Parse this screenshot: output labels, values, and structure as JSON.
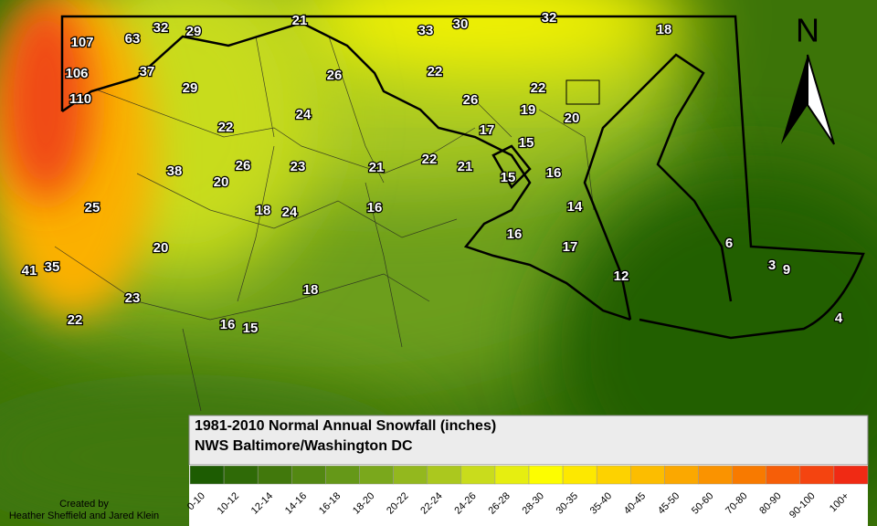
{
  "title": "1981-2010 Normal Annual Snowfall (inches)",
  "subtitle": "NWS Baltimore/Washington DC",
  "north_label": "N",
  "credit": [
    "Created by",
    "Heather Sheffield and Jared Klein"
  ],
  "legend": [
    {
      "label": "0-10",
      "color": "#1d5c02"
    },
    {
      "label": "10-12",
      "color": "#2f6a07"
    },
    {
      "label": "12-14",
      "color": "#41780c"
    },
    {
      "label": "14-16",
      "color": "#538812"
    },
    {
      "label": "16-18",
      "color": "#659818"
    },
    {
      "label": "18-20",
      "color": "#7aa81c"
    },
    {
      "label": "20-22",
      "color": "#93b81e"
    },
    {
      "label": "22-24",
      "color": "#abc81e"
    },
    {
      "label": "24-26",
      "color": "#c9dc1c"
    },
    {
      "label": "26-28",
      "color": "#e6ee10"
    },
    {
      "label": "28-30",
      "color": "#fdfd00"
    },
    {
      "label": "30-35",
      "color": "#fde800"
    },
    {
      "label": "35-40",
      "color": "#fdd200"
    },
    {
      "label": "40-45",
      "color": "#fcbd00"
    },
    {
      "label": "45-50",
      "color": "#fba800"
    },
    {
      "label": "50-60",
      "color": "#fa9300"
    },
    {
      "label": "70-80",
      "color": "#f87a00"
    },
    {
      "label": "80-90",
      "color": "#f65e08"
    },
    {
      "label": "90-100",
      "color": "#f44410"
    },
    {
      "label": "100+",
      "color": "#f02a14"
    }
  ],
  "stations": [
    107,
    63,
    32,
    29,
    21,
    33,
    30,
    32,
    18,
    106,
    37,
    26,
    22,
    110,
    29,
    26,
    22,
    19,
    20,
    24,
    22,
    17,
    15,
    38,
    26,
    20,
    23,
    21,
    22,
    21,
    15,
    16,
    25,
    18,
    24,
    16,
    14,
    20,
    16,
    17,
    6,
    41,
    35,
    3,
    9,
    12,
    18,
    23,
    22,
    16,
    15,
    4
  ]
}
